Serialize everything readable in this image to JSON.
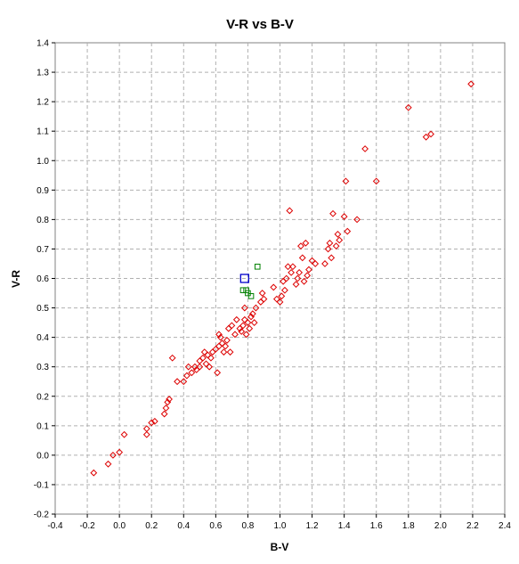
{
  "chart_data": {
    "type": "scatter",
    "title": "V-R vs B-V",
    "xlabel": "B-V",
    "ylabel": "V-R",
    "xlim": [
      -0.4,
      2.4
    ],
    "ylim": [
      -0.2,
      1.4
    ],
    "xticks": [
      "-0.4",
      "-0.2",
      "0.0",
      "0.2",
      "0.4",
      "0.6",
      "0.8",
      "1.0",
      "1.2",
      "1.4",
      "1.6",
      "1.8",
      "2.0",
      "2.2",
      "2.4"
    ],
    "yticks": [
      "-0.2",
      "-0.1",
      "0.0",
      "0.1",
      "0.2",
      "0.3",
      "0.4",
      "0.5",
      "0.6",
      "0.7",
      "0.8",
      "0.9",
      "1.0",
      "1.1",
      "1.2",
      "1.3",
      "1.4"
    ],
    "xtick_values": [
      -0.4,
      -0.2,
      0,
      0.2,
      0.4,
      0.6,
      0.8,
      1.0,
      1.2,
      1.4,
      1.6,
      1.8,
      2.0,
      2.2,
      2.4
    ],
    "ytick_values": [
      -0.2,
      -0.1,
      0,
      0.1,
      0.2,
      0.3,
      0.4,
      0.5,
      0.6,
      0.7,
      0.8,
      0.9,
      1.0,
      1.1,
      1.2,
      1.3,
      1.4
    ],
    "grid": true,
    "legend": "none",
    "series": [
      {
        "marker": "diamond",
        "color": "#dd0000",
        "points": [
          [
            -0.16,
            -0.06
          ],
          [
            -0.07,
            -0.03
          ],
          [
            -0.04,
            0.0
          ],
          [
            0.0,
            0.01
          ],
          [
            0.03,
            0.07
          ],
          [
            0.17,
            0.07
          ],
          [
            0.17,
            0.09
          ],
          [
            0.2,
            0.11
          ],
          [
            0.22,
            0.115
          ],
          [
            0.28,
            0.14
          ],
          [
            0.29,
            0.16
          ],
          [
            0.3,
            0.18
          ],
          [
            0.31,
            0.19
          ],
          [
            0.33,
            0.33
          ],
          [
            0.36,
            0.25
          ],
          [
            0.4,
            0.25
          ],
          [
            0.42,
            0.27
          ],
          [
            0.43,
            0.3
          ],
          [
            0.45,
            0.28
          ],
          [
            0.47,
            0.3
          ],
          [
            0.48,
            0.29
          ],
          [
            0.5,
            0.32
          ],
          [
            0.5,
            0.3
          ],
          [
            0.52,
            0.33
          ],
          [
            0.53,
            0.35
          ],
          [
            0.54,
            0.31
          ],
          [
            0.55,
            0.34
          ],
          [
            0.56,
            0.3
          ],
          [
            0.57,
            0.33
          ],
          [
            0.58,
            0.35
          ],
          [
            0.6,
            0.36
          ],
          [
            0.61,
            0.28
          ],
          [
            0.62,
            0.37
          ],
          [
            0.62,
            0.41
          ],
          [
            0.63,
            0.4
          ],
          [
            0.64,
            0.38
          ],
          [
            0.65,
            0.35
          ],
          [
            0.66,
            0.37
          ],
          [
            0.67,
            0.39
          ],
          [
            0.68,
            0.43
          ],
          [
            0.69,
            0.35
          ],
          [
            0.7,
            0.44
          ],
          [
            0.72,
            0.41
          ],
          [
            0.73,
            0.46
          ],
          [
            0.75,
            0.43
          ],
          [
            0.76,
            0.42
          ],
          [
            0.77,
            0.44
          ],
          [
            0.78,
            0.46
          ],
          [
            0.78,
            0.5
          ],
          [
            0.79,
            0.41
          ],
          [
            0.8,
            0.45
          ],
          [
            0.81,
            0.43
          ],
          [
            0.82,
            0.47
          ],
          [
            0.83,
            0.48
          ],
          [
            0.84,
            0.45
          ],
          [
            0.85,
            0.5
          ],
          [
            0.88,
            0.52
          ],
          [
            0.89,
            0.55
          ],
          [
            0.9,
            0.53
          ],
          [
            0.96,
            0.57
          ],
          [
            0.98,
            0.53
          ],
          [
            1.0,
            0.52
          ],
          [
            1.01,
            0.54
          ],
          [
            1.02,
            0.59
          ],
          [
            1.03,
            0.56
          ],
          [
            1.04,
            0.6
          ],
          [
            1.05,
            0.64
          ],
          [
            1.06,
            0.83
          ],
          [
            1.07,
            0.62
          ],
          [
            1.08,
            0.64
          ],
          [
            1.1,
            0.58
          ],
          [
            1.11,
            0.6
          ],
          [
            1.12,
            0.62
          ],
          [
            1.13,
            0.71
          ],
          [
            1.14,
            0.67
          ],
          [
            1.15,
            0.59
          ],
          [
            1.16,
            0.72
          ],
          [
            1.17,
            0.61
          ],
          [
            1.18,
            0.63
          ],
          [
            1.2,
            0.66
          ],
          [
            1.22,
            0.65
          ],
          [
            1.28,
            0.65
          ],
          [
            1.3,
            0.7
          ],
          [
            1.31,
            0.72
          ],
          [
            1.32,
            0.67
          ],
          [
            1.33,
            0.82
          ],
          [
            1.35,
            0.71
          ],
          [
            1.36,
            0.75
          ],
          [
            1.37,
            0.73
          ],
          [
            1.4,
            0.81
          ],
          [
            1.41,
            0.93
          ],
          [
            1.42,
            0.76
          ],
          [
            1.48,
            0.8
          ],
          [
            1.53,
            1.04
          ],
          [
            1.6,
            0.93
          ],
          [
            1.8,
            1.18
          ],
          [
            1.91,
            1.08
          ],
          [
            1.94,
            1.09
          ],
          [
            2.19,
            1.26
          ]
        ]
      },
      {
        "marker": "square",
        "color": "#008000",
        "points": [
          [
            0.77,
            0.56
          ],
          [
            0.79,
            0.56
          ],
          [
            0.8,
            0.55
          ],
          [
            0.82,
            0.54
          ],
          [
            0.86,
            0.64
          ]
        ]
      },
      {
        "marker": "square-large",
        "color": "#0000cc",
        "points": [
          [
            0.78,
            0.6
          ]
        ]
      }
    ]
  }
}
